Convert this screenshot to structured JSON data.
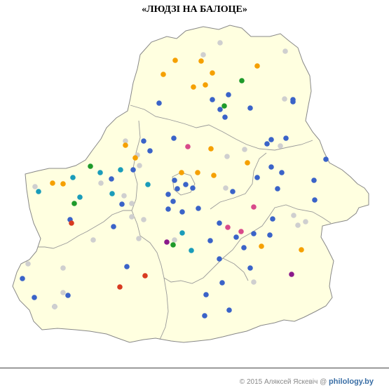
{
  "title": "«ЛЮДЗІ НА БАЛОЦЕ»",
  "footer": {
    "credit": "© 2015 Аляксей Яскевіч @ ",
    "site": "philology.by"
  },
  "colors": {
    "land": "#ffffe0",
    "border": "#888888",
    "blue": "#3a63c8",
    "orange": "#f5a000",
    "grey": "#cfcfcf",
    "green": "#1e9a2a",
    "teal": "#1a9cba",
    "pink": "#d84a8a",
    "red": "#d83a20",
    "purple": "#8b1a8b"
  },
  "dot_categories": [
    "blue",
    "orange",
    "grey",
    "green",
    "teal",
    "pink",
    "red",
    "purple"
  ]
}
